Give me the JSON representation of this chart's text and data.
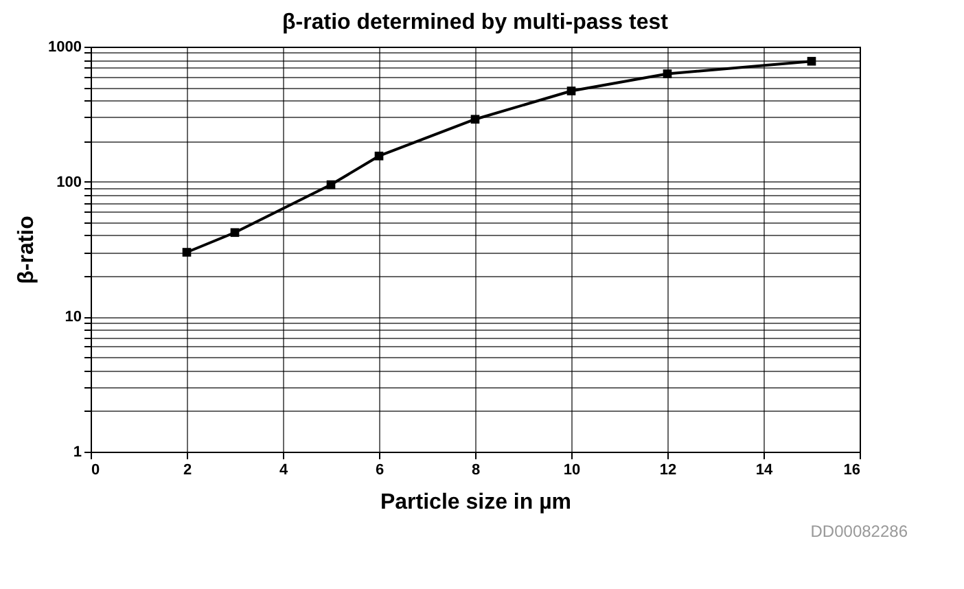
{
  "chart_data": {
    "type": "line",
    "title": "β-ratio determined by multi-pass test",
    "xlabel": "Particle size in µm",
    "ylabel": "β-ratio",
    "annotations": [
      "DD00082286"
    ],
    "x": [
      2,
      3,
      5,
      6,
      8,
      10,
      12,
      15
    ],
    "series": [
      {
        "color": "#000000",
        "values": [
          30,
          42,
          95,
          155,
          290,
          470,
          630,
          780
        ]
      }
    ],
    "xlim": [
      0,
      16
    ],
    "xticks": [
      0,
      2,
      4,
      6,
      8,
      10,
      12,
      14,
      16
    ],
    "ylim": [
      1,
      1000
    ],
    "yticks": [
      1,
      {
        "value": 2,
        "label": null
      },
      {
        "value": 3,
        "label": null
      },
      {
        "value": 4,
        "label": null
      },
      {
        "value": 5,
        "label": null
      },
      {
        "value": 6,
        "label": null
      },
      {
        "value": 7,
        "label": null
      },
      {
        "value": 8,
        "label": null
      },
      {
        "value": 9,
        "label": null
      },
      10,
      {
        "value": 20,
        "label": null
      },
      {
        "value": 30,
        "label": null
      },
      {
        "value": 40,
        "label": null
      },
      {
        "value": 50,
        "label": null
      },
      {
        "value": 60,
        "label": null
      },
      {
        "value": 70,
        "label": null
      },
      {
        "value": 80,
        "label": null
      },
      {
        "value": 90,
        "label": null
      },
      100,
      {
        "value": 200,
        "label": null
      },
      {
        "value": 300,
        "label": null
      },
      {
        "value": 400,
        "label": null
      },
      {
        "value": 500,
        "label": null
      },
      {
        "value": 600,
        "label": null
      },
      {
        "value": 700,
        "label": null
      },
      {
        "value": 800,
        "label": null
      },
      {
        "value": 900,
        "label": null
      },
      1000
    ],
    "log": "y",
    "grid": true,
    "marker": "square",
    "line_style": "solid"
  }
}
